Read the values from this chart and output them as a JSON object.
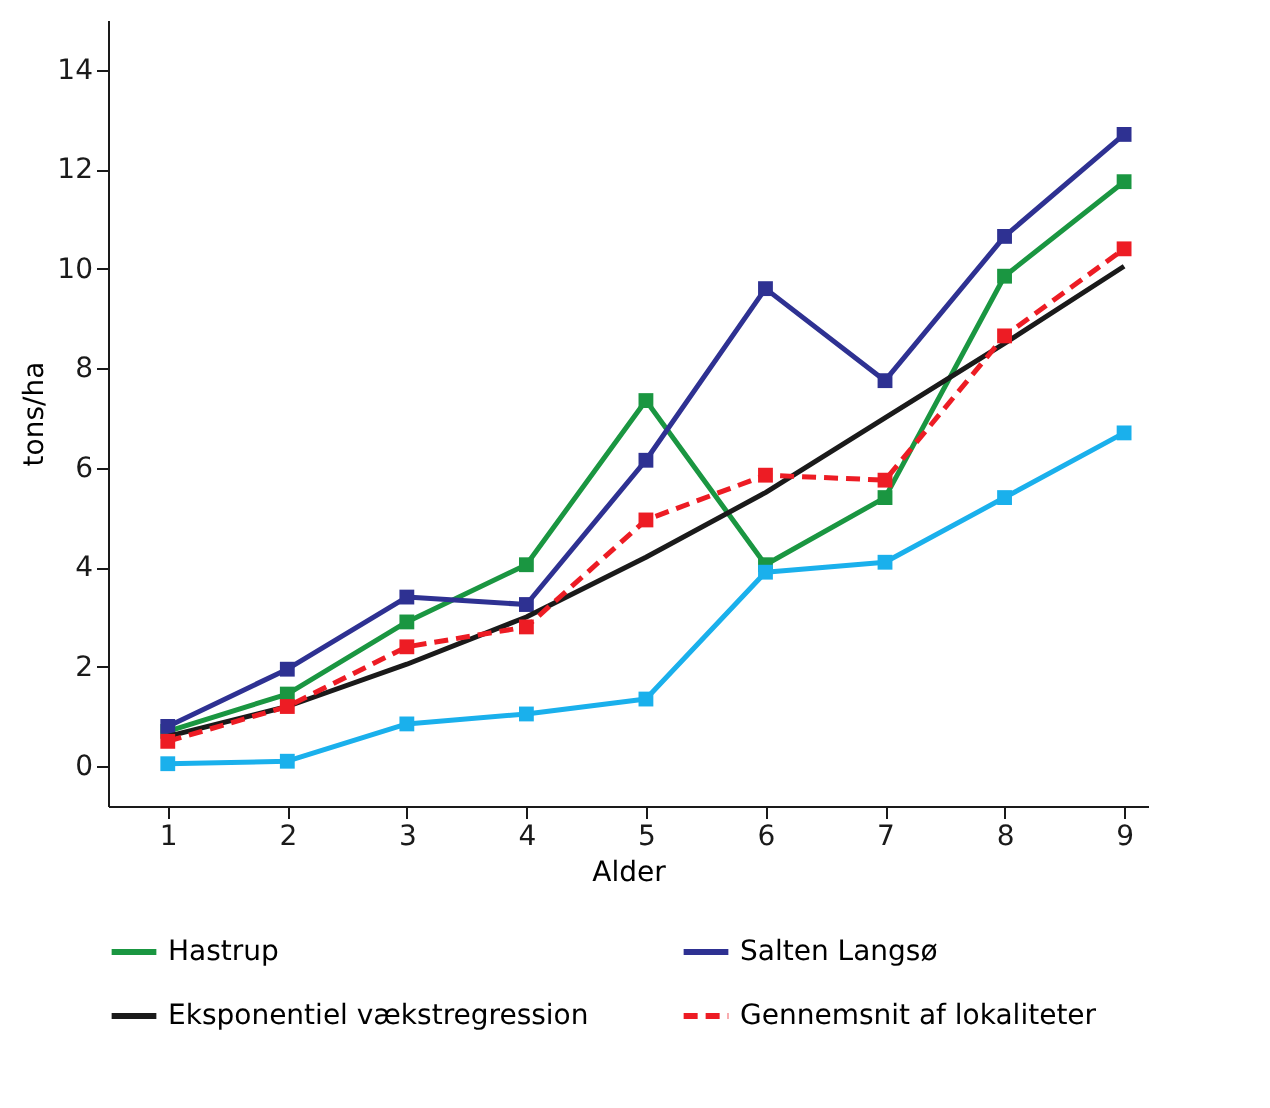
{
  "chart_data": {
    "type": "line",
    "xlabel": "Alder",
    "ylabel": "tons/ha",
    "x": [
      1,
      2,
      3,
      4,
      5,
      6,
      7,
      8,
      9
    ],
    "series": [
      {
        "name": "Hastrup",
        "color": "#1a9641",
        "marker": "square",
        "line_style": "solid",
        "values": [
          0.7,
          1.45,
          2.9,
          4.05,
          7.35,
          4.05,
          5.4,
          9.85,
          11.75
        ]
      },
      {
        "color": "#1ab0ec",
        "marker": "square",
        "line_style": "solid",
        "values": [
          0.05,
          0.1,
          0.85,
          1.05,
          1.35,
          3.9,
          4.1,
          5.4,
          6.7
        ]
      },
      {
        "name": "Salten Langsø",
        "color": "#2e3192",
        "marker": "square",
        "line_style": "solid",
        "values": [
          0.8,
          1.95,
          3.4,
          3.25,
          6.15,
          9.6,
          7.75,
          10.65,
          12.7
        ]
      },
      {
        "name": "Eksponentiel vækstregression",
        "color": "#1a1a1a",
        "marker": "none",
        "line_style": "solid",
        "values": [
          0.6,
          1.2,
          2.05,
          3.0,
          4.2,
          5.5,
          7.0,
          8.5,
          10.05
        ]
      },
      {
        "name": "Gennemsnit af lokaliteter",
        "color": "#ed1c24",
        "marker": "square",
        "line_style": "dashed",
        "values": [
          0.5,
          1.2,
          2.4,
          2.8,
          4.95,
          5.85,
          5.75,
          8.65,
          10.4
        ]
      }
    ],
    "xlim": [
      0.5,
      9.2
    ],
    "xticks": [
      1,
      2,
      3,
      4,
      5,
      6,
      7,
      8,
      9
    ],
    "ylim": [
      -0.8,
      15
    ],
    "yticks": [
      0,
      2,
      4,
      6,
      8,
      10,
      12,
      14
    ],
    "grid": false,
    "legend": "bottom"
  }
}
